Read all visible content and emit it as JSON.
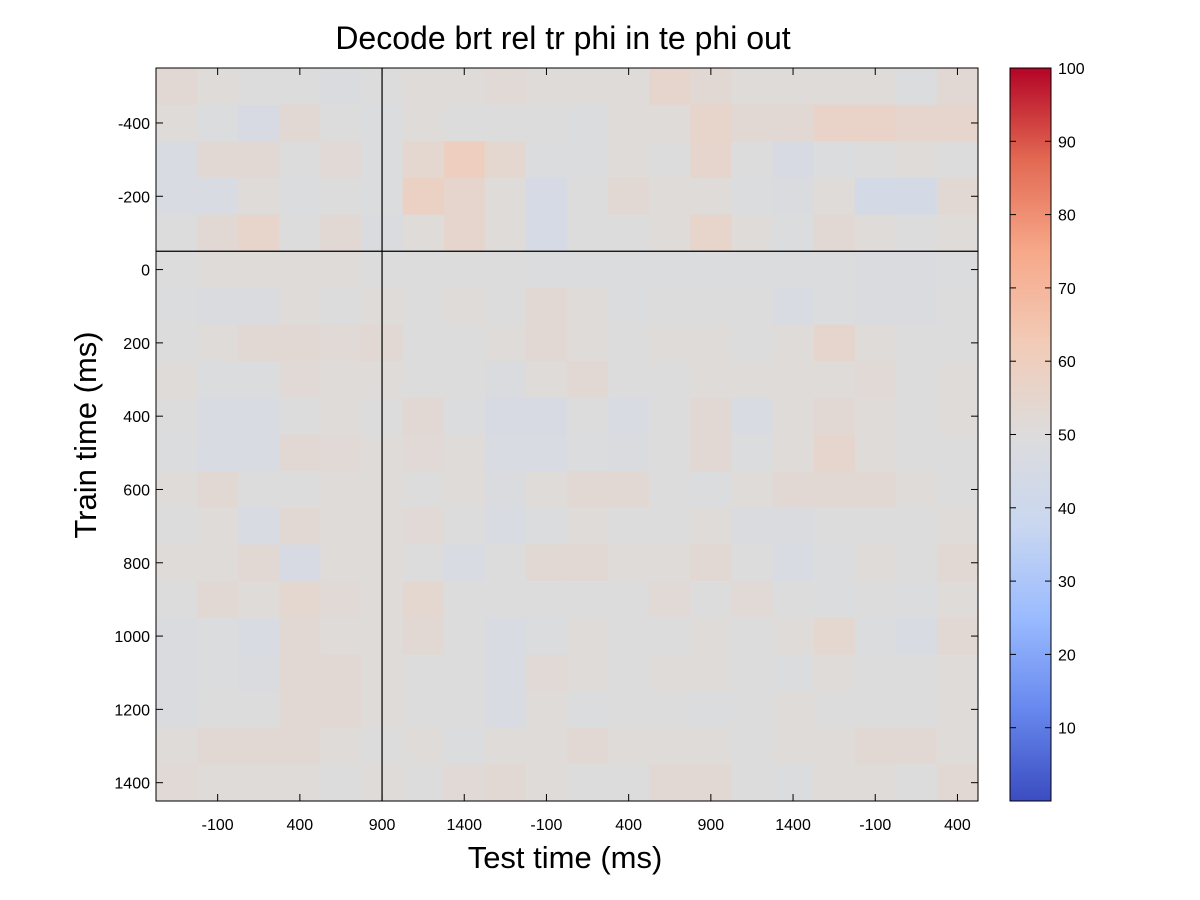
{
  "chart_data": {
    "type": "heatmap",
    "title": "Decode brt rel tr phi in te phi out",
    "xlabel": "Test time (ms)",
    "ylabel": "Train time (ms)",
    "x_tick_labels": [
      "-100",
      "400",
      "900",
      "1400",
      "-100",
      "400",
      "900",
      "1400",
      "-100",
      "400"
    ],
    "y_tick_labels": [
      "-400",
      "-200",
      "0",
      "200",
      "400",
      "600",
      "800",
      "1000",
      "1200",
      "1400"
    ],
    "y_tick_values": [
      -400,
      -200,
      0,
      200,
      400,
      600,
      800,
      1000,
      1200,
      1400
    ],
    "ylim": [
      -550,
      1450
    ],
    "row_times": [
      -500,
      -400,
      -300,
      -200,
      -100,
      0,
      100,
      200,
      300,
      400,
      500,
      600,
      700,
      800,
      900,
      1000,
      1100,
      1200,
      1300,
      1400
    ],
    "n_cols": 20,
    "x_tick_col_centers": [
      1.5,
      3.5,
      5.5,
      7.5,
      9.5,
      11.5,
      13.5,
      15.5,
      17.5,
      19.5
    ],
    "reference_lines": {
      "x_col": 5.5,
      "y_value": -50
    },
    "colorbar": {
      "min": 0,
      "max": 100,
      "tick_values": [
        10,
        20,
        30,
        40,
        50,
        60,
        70,
        80,
        90,
        100
      ],
      "tick_labels": [
        "10",
        "20",
        "30",
        "40",
        "50",
        "60",
        "70",
        "80",
        "90",
        "100"
      ],
      "colormap": "coolwarm",
      "stops": [
        "#3b4cc0",
        "#6788ee",
        "#9abbff",
        "#c9d7f0",
        "#dddcdc",
        "#f2cbb7",
        "#f7a889",
        "#e26952",
        "#b40426"
      ]
    },
    "values": [
      [
        53,
        51,
        50,
        50,
        48,
        50,
        51,
        51,
        52,
        51,
        51,
        51,
        55,
        53,
        51,
        51,
        51,
        51,
        49,
        53
      ],
      [
        51,
        49,
        46,
        53,
        50,
        49,
        51,
        50,
        50,
        50,
        49,
        51,
        51,
        56,
        53,
        53,
        57,
        57,
        55,
        55
      ],
      [
        47,
        53,
        53,
        50,
        52,
        49,
        54,
        60,
        54,
        49,
        49,
        51,
        50,
        55,
        50,
        46,
        49,
        50,
        51,
        50
      ],
      [
        47,
        47,
        51,
        49,
        50,
        49,
        58,
        55,
        51,
        45,
        50,
        53,
        51,
        51,
        49,
        48,
        51,
        44,
        44,
        53
      ],
      [
        50,
        53,
        56,
        50,
        53,
        48,
        51,
        55,
        51,
        45,
        50,
        50,
        51,
        56,
        51,
        49,
        53,
        51,
        50,
        51
      ],
      [
        50,
        51,
        51,
        51,
        51,
        50,
        50,
        50,
        50,
        49,
        49,
        49,
        49,
        49,
        49,
        49,
        49,
        48,
        48,
        49
      ],
      [
        49,
        48,
        48,
        51,
        50,
        51,
        50,
        51,
        50,
        53,
        51,
        49,
        50,
        50,
        50,
        47,
        49,
        48,
        48,
        50
      ],
      [
        50,
        51,
        53,
        53,
        52,
        53,
        50,
        50,
        51,
        53,
        51,
        50,
        51,
        51,
        50,
        51,
        55,
        51,
        50,
        50
      ],
      [
        51,
        49,
        49,
        52,
        51,
        51,
        50,
        50,
        48,
        51,
        53,
        50,
        50,
        51,
        51,
        51,
        51,
        52,
        50,
        51
      ],
      [
        50,
        47,
        47,
        50,
        51,
        50,
        53,
        49,
        46,
        46,
        50,
        47,
        50,
        53,
        47,
        51,
        53,
        51,
        50,
        51
      ],
      [
        49,
        47,
        47,
        53,
        52,
        51,
        52,
        51,
        47,
        47,
        49,
        48,
        50,
        53,
        49,
        51,
        55,
        51,
        50,
        50
      ],
      [
        51,
        53,
        50,
        50,
        51,
        51,
        50,
        51,
        48,
        51,
        53,
        53,
        50,
        49,
        51,
        53,
        53,
        53,
        51,
        50
      ],
      [
        50,
        51,
        47,
        53,
        51,
        51,
        52,
        50,
        47,
        49,
        51,
        50,
        50,
        51,
        48,
        48,
        50,
        50,
        50,
        51
      ],
      [
        51,
        51,
        53,
        46,
        51,
        51,
        50,
        47,
        50,
        53,
        53,
        51,
        51,
        53,
        50,
        47,
        49,
        51,
        50,
        53
      ],
      [
        50,
        53,
        51,
        54,
        52,
        51,
        54,
        50,
        50,
        50,
        50,
        50,
        52,
        50,
        52,
        50,
        49,
        50,
        49,
        51
      ],
      [
        48,
        49,
        47,
        53,
        51,
        51,
        53,
        50,
        47,
        49,
        51,
        50,
        50,
        51,
        50,
        51,
        54,
        49,
        47,
        53
      ],
      [
        48,
        49,
        48,
        53,
        53,
        51,
        50,
        50,
        47,
        52,
        51,
        50,
        51,
        51,
        50,
        49,
        51,
        50,
        50,
        51
      ],
      [
        48,
        50,
        50,
        53,
        53,
        51,
        50,
        50,
        47,
        51,
        49,
        50,
        50,
        49,
        50,
        51,
        50,
        50,
        50,
        51
      ],
      [
        51,
        53,
        53,
        53,
        51,
        50,
        51,
        49,
        51,
        51,
        53,
        51,
        51,
        51,
        50,
        51,
        51,
        53,
        53,
        51
      ],
      [
        52,
        51,
        51,
        51,
        50,
        51,
        50,
        52,
        53,
        51,
        50,
        50,
        53,
        53,
        50,
        49,
        51,
        51,
        50,
        53
      ]
    ]
  }
}
